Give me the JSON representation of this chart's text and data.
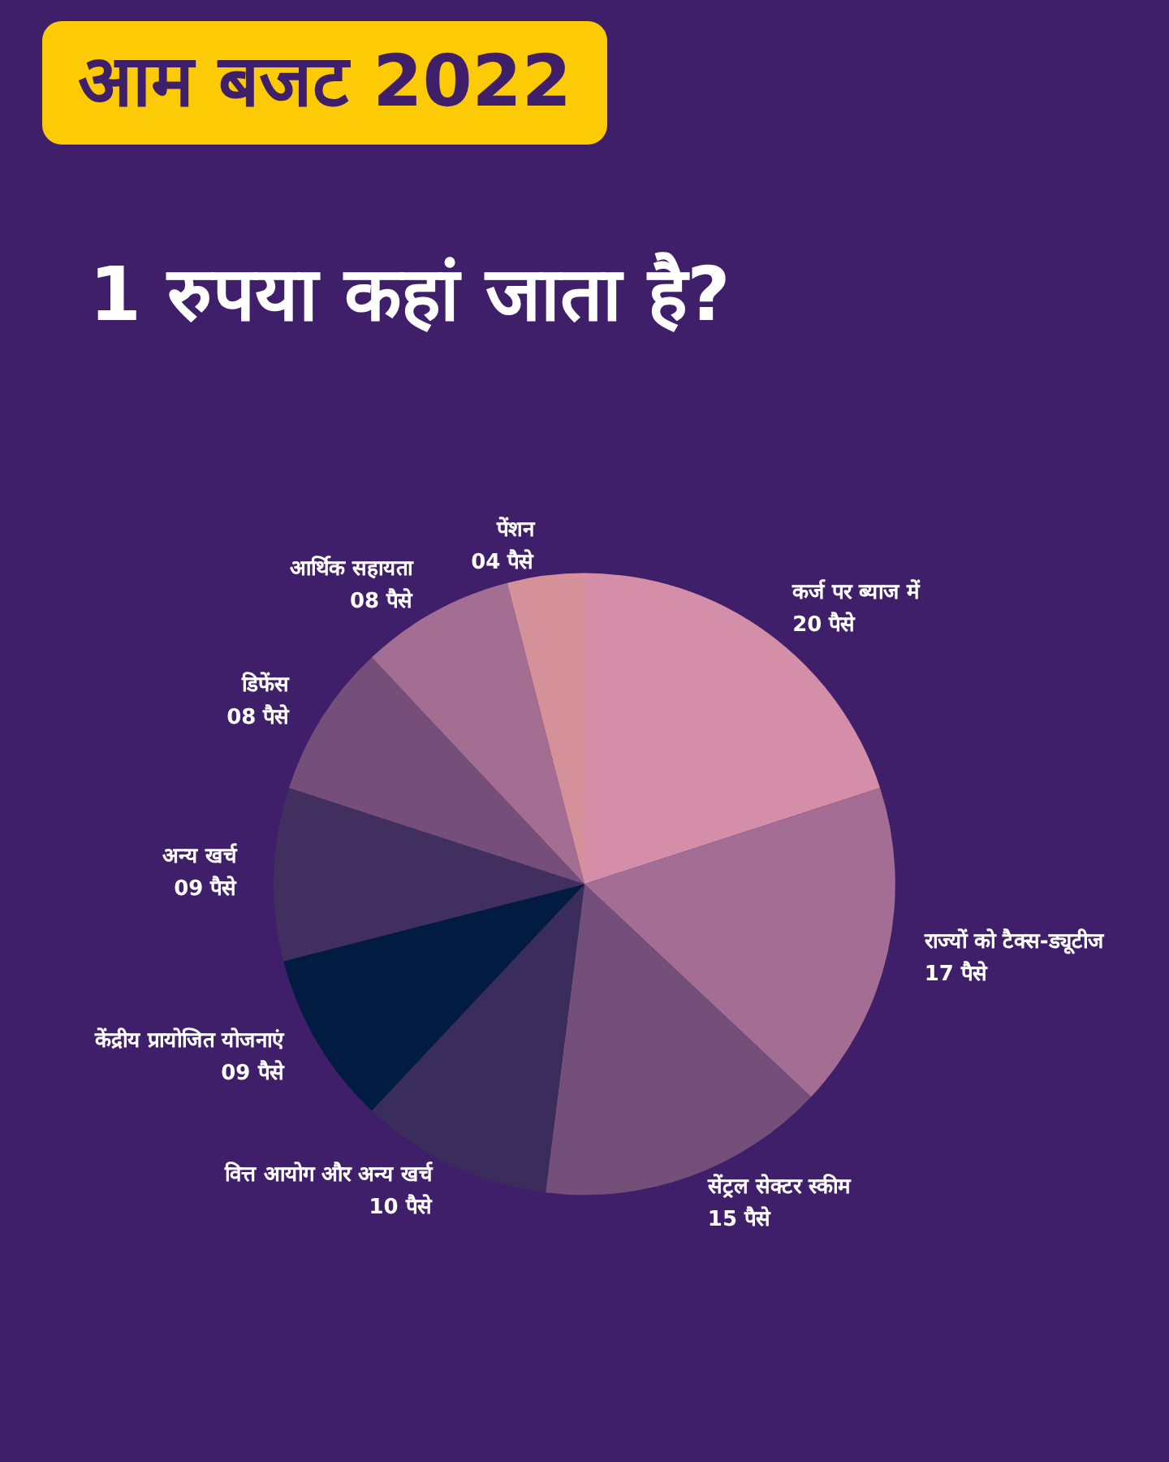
{
  "chart_data": {
    "type": "pie",
    "title": "आम बजट 2022",
    "subtitle": "1 रुपया कहां जाता है?",
    "categories": [
      "कर्ज पर ब्याज में",
      "राज्यों को टैक्स-ड्यूटीज",
      "सेंट्रल सेक्टर स्कीम",
      "वित्त आयोग और अन्य खर्च",
      "केंद्रीय प्रायोजित योजनाएं",
      "अन्य खर्च",
      "डिफेंस",
      "आर्थिक सहायता",
      "पेंशन"
    ],
    "values": [
      20,
      17,
      15,
      10,
      9,
      9,
      8,
      8,
      4
    ],
    "value_labels": [
      "20 पैसे",
      "17 पैसे",
      "15 पैसे",
      "10 पैसे",
      "09 पैसे",
      "09 पैसे",
      "08 पैसे",
      "08 पैसे",
      "04 पैसे"
    ],
    "colors": [
      "#d48ea8",
      "#a46e94",
      "#734f7a",
      "#3a2d5c",
      "#011b41",
      "#41305f",
      "#754f79",
      "#a46e92",
      "#d4919a"
    ],
    "legend": false
  }
}
